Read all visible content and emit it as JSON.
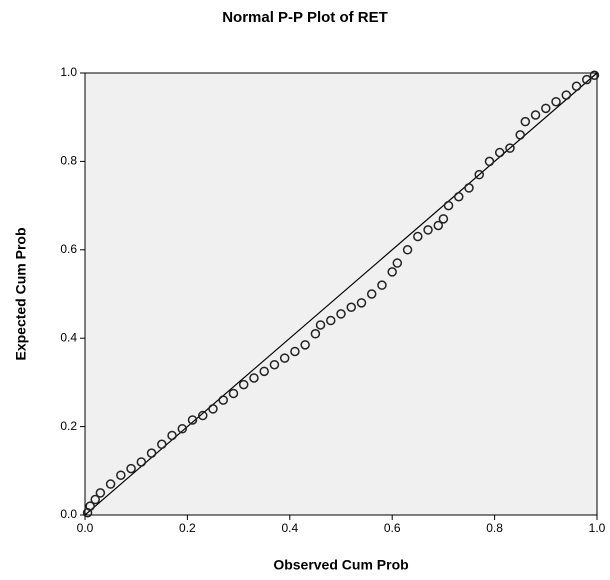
{
  "chart_data": {
    "type": "scatter",
    "title": "Normal P-P Plot of RET",
    "x_label": "Observed Cum Prob",
    "y_label": "Expected Cum Prob",
    "x": [
      0.005,
      0.01,
      0.02,
      0.03,
      0.05,
      0.07,
      0.09,
      0.11,
      0.13,
      0.15,
      0.17,
      0.19,
      0.21,
      0.23,
      0.25,
      0.27,
      0.29,
      0.31,
      0.33,
      0.35,
      0.37,
      0.39,
      0.41,
      0.43,
      0.45,
      0.46,
      0.48,
      0.5,
      0.52,
      0.54,
      0.56,
      0.58,
      0.6,
      0.61,
      0.63,
      0.65,
      0.67,
      0.69,
      0.7,
      0.71,
      0.73,
      0.75,
      0.77,
      0.79,
      0.81,
      0.83,
      0.85,
      0.86,
      0.88,
      0.9,
      0.92,
      0.94,
      0.96,
      0.98,
      0.995
    ],
    "y": [
      0.005,
      0.02,
      0.035,
      0.05,
      0.07,
      0.09,
      0.105,
      0.12,
      0.14,
      0.16,
      0.18,
      0.195,
      0.215,
      0.225,
      0.24,
      0.26,
      0.275,
      0.295,
      0.31,
      0.325,
      0.34,
      0.355,
      0.37,
      0.385,
      0.41,
      0.43,
      0.44,
      0.455,
      0.47,
      0.48,
      0.5,
      0.52,
      0.55,
      0.57,
      0.6,
      0.63,
      0.645,
      0.655,
      0.67,
      0.7,
      0.72,
      0.74,
      0.77,
      0.8,
      0.82,
      0.83,
      0.86,
      0.89,
      0.905,
      0.92,
      0.935,
      0.95,
      0.97,
      0.985,
      0.995
    ],
    "color": "#222222",
    "xlim": [
      0,
      1
    ],
    "ylim": [
      0,
      1
    ],
    "xticks": [
      {
        "value": 0,
        "label": "0.0"
      },
      0.2,
      0.4,
      0.6,
      0.8,
      {
        "value": 1,
        "label": "1.0"
      }
    ],
    "yticks": [
      {
        "value": 0,
        "label": "0.0"
      },
      0.2,
      0.4,
      0.6,
      0.8,
      {
        "value": 1,
        "label": "1.0"
      }
    ],
    "reference_line": true
  }
}
